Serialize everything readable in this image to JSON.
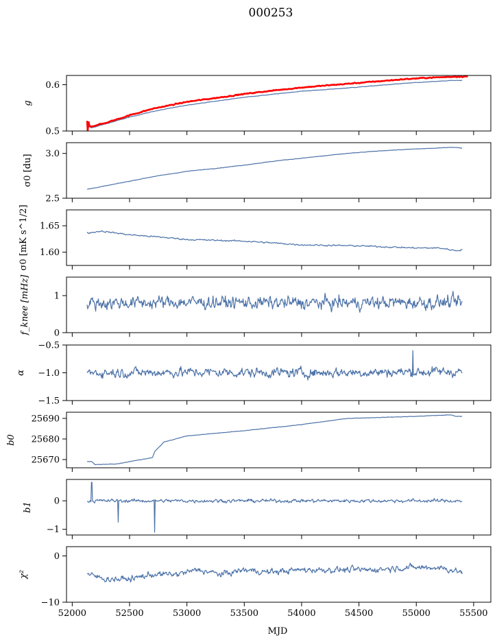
{
  "title": "000253",
  "chart_data": {
    "type": "line",
    "x_label": "MJD",
    "x_range": [
      51950,
      55650
    ],
    "x_ticks": [
      52000,
      52500,
      53000,
      53500,
      54000,
      54500,
      55000,
      55500
    ],
    "x_tick_labels": [
      "52000",
      "52500",
      "53000",
      "53500",
      "54000",
      "54500",
      "55000",
      "55500"
    ],
    "data_x_range": [
      52130,
      55400
    ],
    "panels": [
      {
        "ylabel": "g",
        "ylim": [
          0.5,
          0.62
        ],
        "y_ticks": [
          0.5,
          0.6
        ],
        "y_tick_labels": [
          "0.5",
          "0.6"
        ],
        "series": [
          {
            "name": "g",
            "color": "#4c72a8",
            "width": 1.2,
            "noise": 0.0006,
            "spikes": [],
            "x": [
              52130,
              52170,
              52300,
              52500,
              52700,
              53000,
              53300,
              53500,
              53700,
              54000,
              54300,
              54600,
              54900,
              55100,
              55300,
              55400
            ],
            "y": [
              0.51,
              0.507,
              0.516,
              0.53,
              0.542,
              0.556,
              0.566,
              0.573,
              0.578,
              0.586,
              0.591,
              0.597,
              0.603,
              0.606,
              0.609,
              0.609
            ]
          },
          {
            "name": "g (red)",
            "color": "#ff0000",
            "width": 2.6,
            "noise": 0.0012,
            "spikes": [
              [
                52130,
                0.522
              ],
              [
                52135,
                0.5
              ],
              [
                52145,
                0.519
              ],
              [
                55340,
                0.622
              ]
            ],
            "x": [
              52130,
              52170,
              52300,
              52500,
              52700,
              53000,
              53300,
              53500,
              53700,
              54000,
              54300,
              54600,
              54900,
              55100,
              55300,
              55450
            ],
            "y": [
              0.513,
              0.51,
              0.518,
              0.534,
              0.548,
              0.563,
              0.573,
              0.58,
              0.586,
              0.594,
              0.6,
              0.606,
              0.612,
              0.615,
              0.617,
              0.618
            ]
          }
        ]
      },
      {
        "ylabel": "σ0 [du]",
        "ylim": [
          2.5,
          3.12
        ],
        "y_ticks": [
          2.5,
          3.0
        ],
        "y_tick_labels": [
          "2.5",
          "3.0"
        ],
        "series": [
          {
            "name": "sigma0 du",
            "color": "#4c72a8",
            "width": 1.2,
            "noise": 0.003,
            "spikes": [],
            "x": [
              52130,
              52300,
              52500,
              52700,
              53000,
              53300,
              53500,
              53800,
              54100,
              54400,
              54700,
              55000,
              55200,
              55300,
              55400
            ],
            "y": [
              2.6,
              2.64,
              2.69,
              2.74,
              2.8,
              2.84,
              2.87,
              2.92,
              2.96,
              3.0,
              3.03,
              3.05,
              3.06,
              3.07,
              3.06
            ]
          }
        ]
      },
      {
        "ylabel": "σ0 [mK s^1/2]",
        "ylim": [
          1.575,
          1.68
        ],
        "y_ticks": [
          1.6,
          1.65
        ],
        "y_tick_labels": [
          "1.60",
          "1.65"
        ],
        "series": [
          {
            "name": "sigma0 mK",
            "color": "#4c72a8",
            "width": 1.2,
            "noise": 0.0016,
            "spikes": [],
            "x": [
              52130,
              52250,
              52500,
              52800,
              53000,
              53500,
              54000,
              54500,
              55000,
              55200,
              55350,
              55400
            ],
            "y": [
              1.636,
              1.64,
              1.633,
              1.628,
              1.624,
              1.621,
              1.614,
              1.612,
              1.608,
              1.608,
              1.603,
              1.605
            ]
          }
        ]
      },
      {
        "ylabel": "f_knee [mHz]",
        "ylim": [
          0,
          1.5
        ],
        "y_ticks": [
          0,
          1
        ],
        "y_tick_labels": [
          "0",
          "1"
        ],
        "series": [
          {
            "name": "fknee",
            "color": "#4c72a8",
            "width": 1.2,
            "noise": 0.2,
            "spikes": [],
            "x": [
              52130,
              53000,
              54000,
              55400
            ],
            "y": [
              0.8,
              0.82,
              0.8,
              0.82
            ]
          }
        ]
      },
      {
        "ylabel": "α",
        "ylim": [
          -1.5,
          -0.5
        ],
        "y_ticks": [
          -1.5,
          -1.0,
          -0.5
        ],
        "y_tick_labels": [
          "−1.5",
          "−1.0",
          "−0.5"
        ],
        "series": [
          {
            "name": "alpha",
            "color": "#4c72a8",
            "width": 1.2,
            "noise": 0.1,
            "spikes": [
              [
                54970,
                -0.6
              ]
            ],
            "x": [
              52130,
              53000,
              54000,
              55400
            ],
            "y": [
              -1.0,
              -0.99,
              -1.0,
              -0.98
            ]
          }
        ]
      },
      {
        "ylabel": "b0",
        "ylim": [
          25666,
          25693
        ],
        "y_ticks": [
          25670,
          25680,
          25690
        ],
        "y_tick_labels": [
          "25670",
          "25680",
          "25690"
        ],
        "series": [
          {
            "name": "b0",
            "color": "#4c72a8",
            "width": 1.2,
            "noise": 0.12,
            "spikes": [],
            "x": [
              52130,
              52170,
              52200,
              52400,
              52700,
              52720,
              52800,
              53000,
              53500,
              54000,
              54400,
              55000,
              55200,
              55300,
              55350,
              55400
            ],
            "y": [
              25669,
              25669,
              25667.5,
              25668,
              25671,
              25674,
              25678.5,
              25681.5,
              25684,
              25687,
              25690,
              25691,
              25691.5,
              25691.7,
              25691,
              25691
            ]
          }
        ]
      },
      {
        "ylabel": "b1",
        "ylim": [
          -1.2,
          0.75
        ],
        "y_ticks": [
          -1,
          0
        ],
        "y_tick_labels": [
          "−1",
          "0"
        ],
        "series": [
          {
            "name": "b1",
            "color": "#4c72a8",
            "width": 1.2,
            "noise": 0.07,
            "spikes": [
              [
                52170,
                0.65
              ],
              [
                52400,
                -0.75
              ],
              [
                52720,
                -1.1
              ]
            ],
            "x": [
              52130,
              53000,
              54000,
              55400
            ],
            "y": [
              0.0,
              0.0,
              0.0,
              0.0
            ]
          }
        ]
      },
      {
        "ylabel": "χ²",
        "ylim": [
          -10,
          2
        ],
        "y_ticks": [
          -10,
          0
        ],
        "y_tick_labels": [
          "−10",
          "0"
        ],
        "series": [
          {
            "name": "chi2",
            "color": "#4c72a8",
            "width": 1.2,
            "noise": 0.75,
            "spikes": [],
            "x": [
              52130,
              52300,
              52500,
              52700,
              52900,
              53100,
              53300,
              53500,
              53700,
              54000,
              54300,
              54600,
              54900,
              55200,
              55400
            ],
            "y": [
              -4,
              -5,
              -5,
              -4,
              -4,
              -3,
              -4,
              -3,
              -3.5,
              -3,
              -3,
              -3,
              -2.5,
              -2.5,
              -3.5
            ]
          }
        ]
      }
    ]
  }
}
